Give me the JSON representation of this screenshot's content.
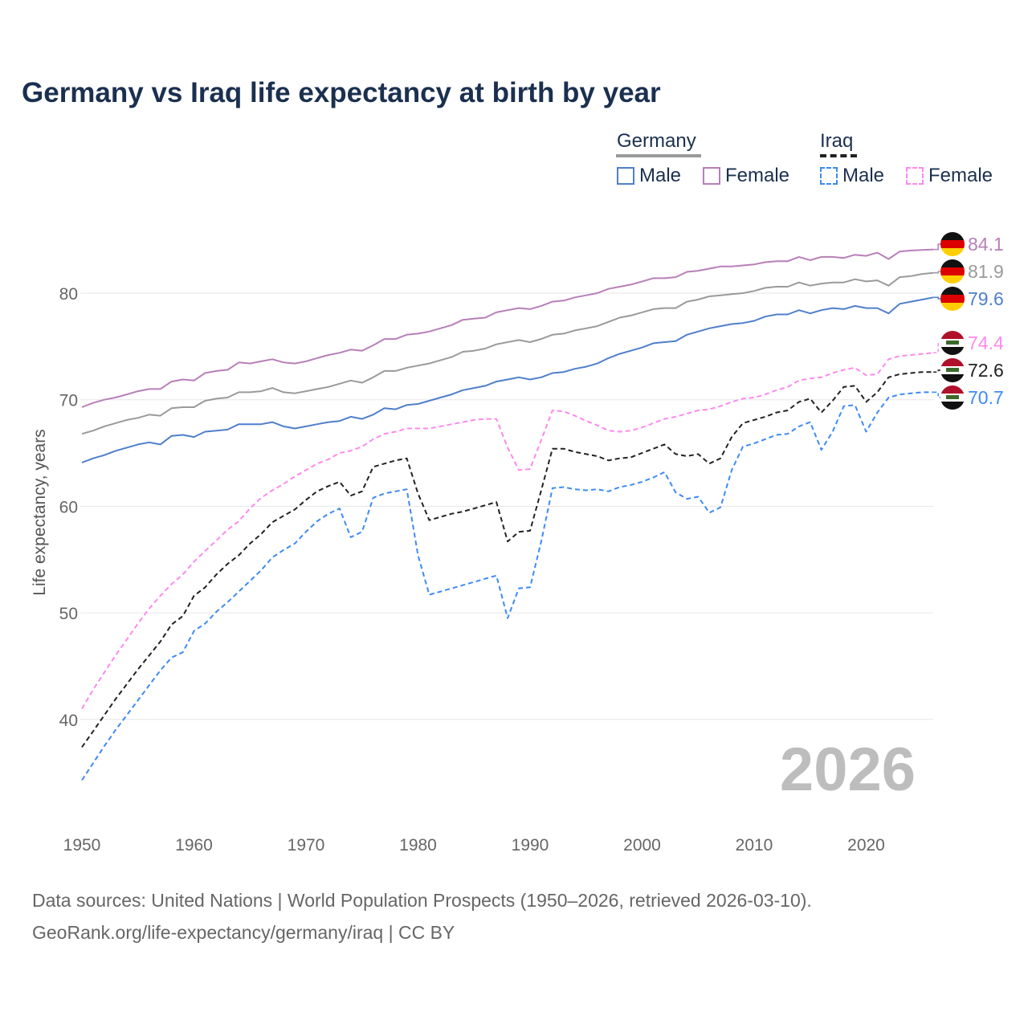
{
  "chart_data": {
    "type": "line",
    "title": "Germany vs Iraq life expectancy at birth by year",
    "ylabel": "Life expectancy, years",
    "xlabel": "",
    "xlim": [
      1950,
      2026
    ],
    "ylim": [
      32,
      88
    ],
    "yticks": [
      "40",
      "50",
      "60",
      "70",
      "80"
    ],
    "xticks": [
      "1950",
      "1960",
      "1970",
      "1980",
      "1990",
      "2000",
      "2010",
      "2020"
    ],
    "grid": true,
    "legend": {
      "placement": "top-right",
      "groups": [
        {
          "name": "Germany",
          "items": [
            "Male",
            "Female"
          ]
        },
        {
          "name": "Iraq",
          "items": [
            "Male",
            "Female"
          ]
        }
      ]
    },
    "year_overlay": "2026",
    "x_start": 1950,
    "series": [
      {
        "name": "Germany Female",
        "color": "#b87fb8",
        "dashed": false,
        "end_label": "84.1",
        "flag": "germany",
        "values": [
          69.3,
          69.7,
          70.0,
          70.2,
          70.5,
          70.8,
          71.0,
          71.0,
          71.7,
          71.9,
          71.8,
          72.5,
          72.7,
          72.8,
          73.5,
          73.4,
          73.6,
          73.8,
          73.5,
          73.4,
          73.6,
          73.9,
          74.2,
          74.4,
          74.7,
          74.6,
          75.1,
          75.7,
          75.7,
          76.1,
          76.2,
          76.4,
          76.7,
          77.0,
          77.5,
          77.6,
          77.7,
          78.2,
          78.4,
          78.6,
          78.5,
          78.8,
          79.2,
          79.3,
          79.6,
          79.8,
          80.0,
          80.4,
          80.6,
          80.8,
          81.1,
          81.4,
          81.4,
          81.5,
          82.0,
          82.1,
          82.3,
          82.5,
          82.5,
          82.6,
          82.7,
          82.9,
          83.0,
          83.0,
          83.4,
          83.1,
          83.4,
          83.4,
          83.3,
          83.6,
          83.5,
          83.8,
          83.2,
          83.9,
          84.0,
          84.05,
          84.1
        ]
      },
      {
        "name": "Germany",
        "color": "#9a9a9a",
        "dashed": false,
        "end_label": "81.9",
        "flag": "germany",
        "values": [
          66.8,
          67.1,
          67.5,
          67.8,
          68.1,
          68.3,
          68.6,
          68.5,
          69.2,
          69.3,
          69.3,
          69.9,
          70.1,
          70.2,
          70.7,
          70.7,
          70.8,
          71.1,
          70.7,
          70.6,
          70.8,
          71.0,
          71.2,
          71.5,
          71.8,
          71.6,
          72.1,
          72.7,
          72.7,
          73.0,
          73.2,
          73.4,
          73.7,
          74.0,
          74.5,
          74.6,
          74.8,
          75.2,
          75.4,
          75.6,
          75.4,
          75.7,
          76.1,
          76.2,
          76.5,
          76.7,
          76.9,
          77.3,
          77.7,
          77.9,
          78.2,
          78.5,
          78.6,
          78.6,
          79.2,
          79.4,
          79.7,
          79.8,
          79.9,
          80.0,
          80.2,
          80.5,
          80.6,
          80.6,
          81.0,
          80.7,
          80.9,
          81.0,
          81.0,
          81.3,
          81.1,
          81.2,
          80.7,
          81.5,
          81.6,
          81.8,
          81.9
        ]
      },
      {
        "name": "Germany Male",
        "color": "#4f7fcb",
        "dashed": false,
        "end_label": "79.6",
        "flag": "germany",
        "values": [
          64.1,
          64.5,
          64.8,
          65.2,
          65.5,
          65.8,
          66.0,
          65.8,
          66.6,
          66.7,
          66.5,
          67.0,
          67.1,
          67.2,
          67.7,
          67.7,
          67.7,
          67.9,
          67.5,
          67.3,
          67.5,
          67.7,
          67.9,
          68.0,
          68.4,
          68.2,
          68.6,
          69.2,
          69.1,
          69.5,
          69.6,
          69.9,
          70.2,
          70.5,
          70.9,
          71.1,
          71.3,
          71.7,
          71.9,
          72.1,
          71.9,
          72.1,
          72.5,
          72.6,
          72.9,
          73.1,
          73.4,
          73.9,
          74.3,
          74.6,
          74.9,
          75.3,
          75.4,
          75.5,
          76.1,
          76.4,
          76.7,
          76.9,
          77.1,
          77.2,
          77.4,
          77.8,
          78.0,
          78.0,
          78.4,
          78.1,
          78.4,
          78.6,
          78.5,
          78.8,
          78.6,
          78.6,
          78.1,
          79.0,
          79.2,
          79.4,
          79.6
        ]
      },
      {
        "name": "Iraq Female",
        "color": "#ff88ee",
        "dashed": true,
        "end_label": "74.4",
        "flag": "iraq",
        "values": [
          41.0,
          42.8,
          44.4,
          46.0,
          47.5,
          49.0,
          50.4,
          51.6,
          52.7,
          53.6,
          54.8,
          55.8,
          56.8,
          57.8,
          58.6,
          59.8,
          60.8,
          61.5,
          62.1,
          62.8,
          63.4,
          64.0,
          64.4,
          65.0,
          65.2,
          65.6,
          66.3,
          66.8,
          67.0,
          67.3,
          67.3,
          67.3,
          67.5,
          67.7,
          67.9,
          68.1,
          68.2,
          68.2,
          65.5,
          63.4,
          63.5,
          66.2,
          69.0,
          68.9,
          68.5,
          68.0,
          67.6,
          67.1,
          67.0,
          67.1,
          67.4,
          67.8,
          68.2,
          68.4,
          68.7,
          69.0,
          69.1,
          69.4,
          69.8,
          70.1,
          70.2,
          70.5,
          70.9,
          71.2,
          71.8,
          72.0,
          72.1,
          72.5,
          72.8,
          73.0,
          72.3,
          72.4,
          73.8,
          74.1,
          74.2,
          74.3,
          74.4
        ]
      },
      {
        "name": "Iraq",
        "color": "#222222",
        "dashed": true,
        "end_label": "72.6",
        "flag": "iraq",
        "values": [
          37.4,
          38.9,
          40.4,
          41.9,
          43.3,
          44.7,
          46.0,
          47.3,
          48.9,
          49.7,
          51.6,
          52.4,
          53.6,
          54.6,
          55.4,
          56.5,
          57.4,
          58.5,
          59.1,
          59.7,
          60.6,
          61.4,
          61.9,
          62.3,
          61.0,
          61.4,
          63.7,
          64.0,
          64.3,
          64.5,
          61.2,
          58.7,
          59.0,
          59.3,
          59.5,
          59.8,
          60.1,
          60.4,
          56.7,
          57.6,
          57.7,
          61.5,
          65.4,
          65.4,
          65.1,
          64.9,
          64.7,
          64.3,
          64.5,
          64.6,
          65.0,
          65.4,
          65.8,
          64.9,
          64.7,
          64.9,
          64.0,
          64.5,
          66.5,
          67.8,
          68.1,
          68.4,
          68.8,
          69.0,
          69.8,
          70.1,
          68.8,
          69.9,
          71.2,
          71.3,
          69.8,
          70.7,
          72.1,
          72.4,
          72.5,
          72.6,
          72.6
        ]
      },
      {
        "name": "Iraq Male",
        "color": "#3d8af7",
        "dashed": true,
        "end_label": "70.7",
        "flag": "iraq",
        "values": [
          34.3,
          35.9,
          37.5,
          39.0,
          40.4,
          41.8,
          43.2,
          44.6,
          45.8,
          46.3,
          48.3,
          49.0,
          50.1,
          51.0,
          52.0,
          53.0,
          54.0,
          55.2,
          55.9,
          56.5,
          57.6,
          58.6,
          59.3,
          59.8,
          57.1,
          57.6,
          60.8,
          61.2,
          61.4,
          61.6,
          55.4,
          51.7,
          52.0,
          52.3,
          52.6,
          52.9,
          53.2,
          53.5,
          49.5,
          52.3,
          52.4,
          56.7,
          61.7,
          61.8,
          61.6,
          61.5,
          61.6,
          61.4,
          61.8,
          62.0,
          62.3,
          62.7,
          63.2,
          61.3,
          60.7,
          60.9,
          59.4,
          59.9,
          63.4,
          65.6,
          65.9,
          66.3,
          66.7,
          66.8,
          67.5,
          67.9,
          65.3,
          67.0,
          69.4,
          69.5,
          67.0,
          68.8,
          70.2,
          70.5,
          70.6,
          70.7,
          70.7
        ]
      }
    ]
  },
  "legend": {
    "germany": "Germany",
    "iraq": "Iraq",
    "male": "Male",
    "female": "Female",
    "germany_total_color": "#9a9a9a",
    "iraq_total_color": "#222222"
  },
  "footer": {
    "line1": "Data sources: United Nations | World Population Prospects (1950–2026, retrieved 2026-03-10).",
    "line2": "GeoRank.org/life-expectancy/germany/iraq | CC BY"
  }
}
